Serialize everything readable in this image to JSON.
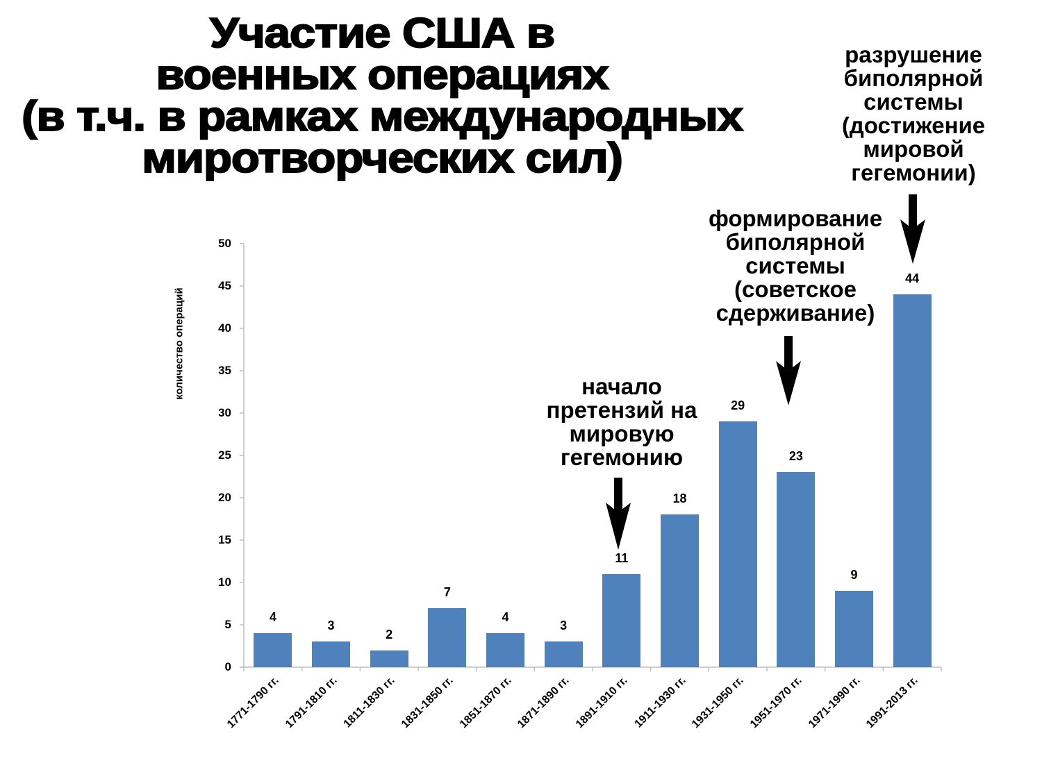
{
  "title": {
    "lines": [
      "Участие США в",
      "военных операциях",
      "(в т.ч. в рамках международных",
      "миротворческих сил)"
    ]
  },
  "annotations": [
    {
      "lines": [
        "начало",
        "претензий на",
        "мировую",
        "гегемонию"
      ],
      "points_to": "1891-1910 гг."
    },
    {
      "lines": [
        "формирование",
        "биполярной",
        "системы",
        "(советское",
        "сдерживание)"
      ],
      "points_to": "1951-1970 гг."
    },
    {
      "lines": [
        "разрушение",
        "биполярной",
        "системы",
        "(достижение",
        "мировой",
        "гегемонии)"
      ],
      "points_to": "1991-2013 гг."
    }
  ],
  "colors": {
    "bar": "#4f81bd",
    "axis": "#bfbfbf",
    "text": "#000000"
  },
  "chart_data": {
    "type": "bar",
    "title": "Участие США в военных операциях (в т.ч. в рамках международных миротворческих сил)",
    "xlabel": "",
    "ylabel": "количество операций",
    "ylim": [
      0,
      50
    ],
    "yticks": [
      0,
      5,
      10,
      15,
      20,
      25,
      30,
      35,
      40,
      45,
      50
    ],
    "grid": false,
    "legend": null,
    "categories": [
      "1771-1790 гг.",
      "1791-1810 гг.",
      "1811-1830 гг.",
      "1831-1850 гг.",
      "1851-1870 гг.",
      "1871-1890 гг.",
      "1891-1910 гг.",
      "1911-1930 гг.",
      "1931-1950 гг.",
      "1951-1970 гг.",
      "1971-1990 гг.",
      "1991-2013 гг."
    ],
    "values": [
      4,
      3,
      2,
      7,
      4,
      3,
      11,
      18,
      29,
      23,
      9,
      44
    ],
    "data_labels": [
      "4",
      "3",
      "2",
      "7",
      "4",
      "3",
      "11",
      "18",
      "29",
      "23",
      "9",
      "44"
    ]
  }
}
